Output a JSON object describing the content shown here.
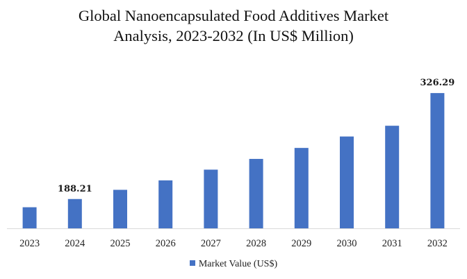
{
  "chart_data": {
    "type": "bar",
    "title_lines": [
      "Global Nanoencapsulated Food Additives Market",
      "Analysis, 2023-2032 (In US$ Million)"
    ],
    "categories": [
      "2023",
      "2024",
      "2025",
      "2026",
      "2027",
      "2028",
      "2029",
      "2030",
      "2031",
      "2032"
    ],
    "series": [
      {
        "name": "Market Value (US$)",
        "values": [
          177.5,
          188.21,
          200.2,
          212.5,
          226.5,
          240.5,
          254.8,
          269.7,
          283.7,
          326.29
        ]
      }
    ],
    "data_labels": [
      {
        "category": "2024",
        "text": "188.21"
      },
      {
        "category": "2032",
        "text": "326.29"
      }
    ],
    "ylim": [
      150,
      330
    ],
    "grid": false,
    "y_axis_visible": false,
    "legend_position": "bottom",
    "bar_color": "#4472C4"
  }
}
